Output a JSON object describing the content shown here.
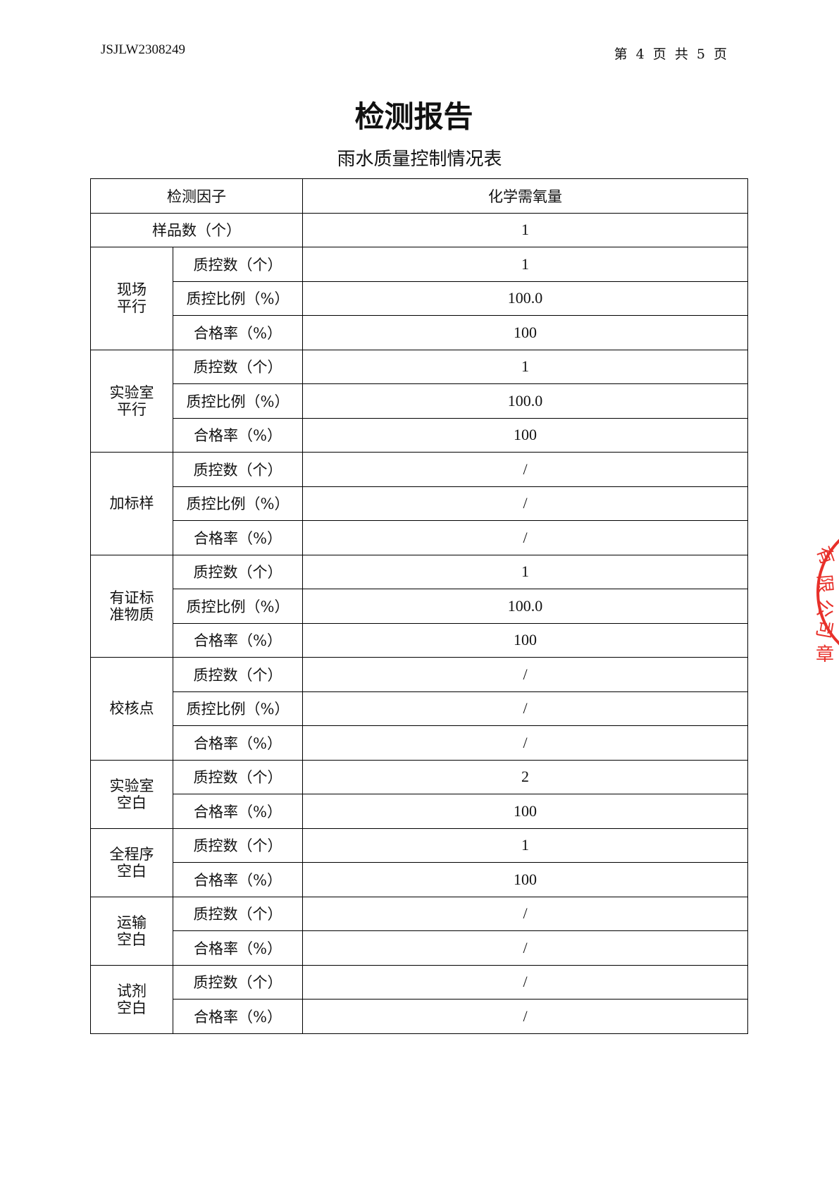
{
  "header": {
    "report_no": "JSJLW2308249",
    "page_info": "第 4 页 共 5 页"
  },
  "title": "检测报告",
  "subtitle": "雨水质量控制情况表",
  "table": {
    "factor_label": "检测因子",
    "factor_value": "化学需氧量",
    "sample_label": "样品数（个）",
    "sample_value": "1",
    "groups": [
      {
        "name": "现场\n平行",
        "rows": [
          {
            "label": "质控数（个）",
            "value": "1"
          },
          {
            "label": "质控比例（%）",
            "value": "100.0"
          },
          {
            "label": "合格率（%）",
            "value": "100"
          }
        ]
      },
      {
        "name": "实验室\n平行",
        "rows": [
          {
            "label": "质控数（个）",
            "value": "1"
          },
          {
            "label": "质控比例（%）",
            "value": "100.0"
          },
          {
            "label": "合格率（%）",
            "value": "100"
          }
        ]
      },
      {
        "name": "加标样",
        "rows": [
          {
            "label": "质控数（个）",
            "value": "/"
          },
          {
            "label": "质控比例（%）",
            "value": "/"
          },
          {
            "label": "合格率（%）",
            "value": "/"
          }
        ]
      },
      {
        "name": "有证标\n准物质",
        "rows": [
          {
            "label": "质控数（个）",
            "value": "1"
          },
          {
            "label": "质控比例（%）",
            "value": "100.0"
          },
          {
            "label": "合格率（%）",
            "value": "100"
          }
        ]
      },
      {
        "name": "校核点",
        "rows": [
          {
            "label": "质控数（个）",
            "value": "/"
          },
          {
            "label": "质控比例（%）",
            "value": "/"
          },
          {
            "label": "合格率（%）",
            "value": "/"
          }
        ]
      },
      {
        "name": "实验室\n空白",
        "rows": [
          {
            "label": "质控数（个）",
            "value": "2"
          },
          {
            "label": "合格率（%）",
            "value": "100"
          }
        ]
      },
      {
        "name": "全程序\n空白",
        "rows": [
          {
            "label": "质控数（个）",
            "value": "1"
          },
          {
            "label": "合格率（%）",
            "value": "100"
          }
        ]
      },
      {
        "name": "运输\n空白",
        "rows": [
          {
            "label": "质控数（个）",
            "value": "/"
          },
          {
            "label": "合格率（%）",
            "value": "/"
          }
        ]
      },
      {
        "name": "试剂\n空白",
        "rows": [
          {
            "label": "质控数（个）",
            "value": "/"
          },
          {
            "label": "合格率（%）",
            "value": "/"
          }
        ]
      }
    ]
  },
  "stamp": {
    "text": "有限公司 章",
    "color": "#e8302a"
  }
}
